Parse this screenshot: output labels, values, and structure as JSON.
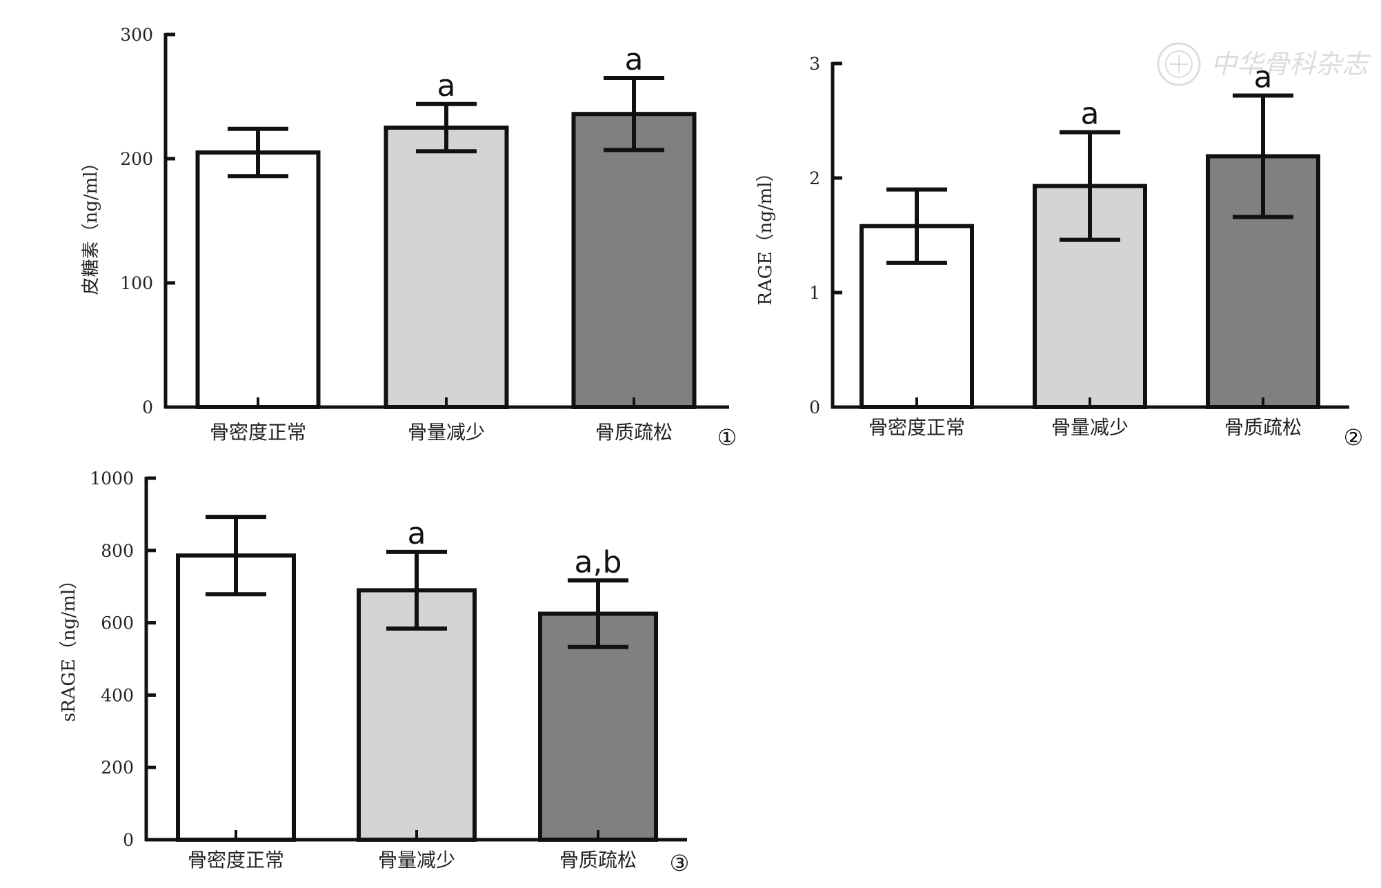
{
  "watermark": {
    "text": "中华骨科杂志",
    "icon": "society-seal-icon",
    "color": "#d8d8d8"
  },
  "chart_data": [
    {
      "type": "bar",
      "panel_label": "①",
      "categories": [
        "骨密度正常",
        "骨量减少",
        "骨质疏松"
      ],
      "values": [
        205,
        225,
        236
      ],
      "errors": [
        19,
        19,
        29
      ],
      "significance": [
        "",
        "a",
        "a"
      ],
      "ylabel": "皮糖素（ng/ml）",
      "ylim": [
        0,
        300
      ],
      "yticks": [
        0,
        100,
        200,
        300
      ],
      "bar_colors": [
        "#ffffff",
        "#d4d4d4",
        "#808080"
      ],
      "grid": false
    },
    {
      "type": "bar",
      "panel_label": "②",
      "categories": [
        "骨密度正常",
        "骨量减少",
        "骨质疏松"
      ],
      "values": [
        1.58,
        1.93,
        2.19
      ],
      "errors": [
        0.32,
        0.47,
        0.53
      ],
      "significance": [
        "",
        "a",
        "a"
      ],
      "ylabel": "RAGE（ng/ml）",
      "ylim": [
        0,
        3
      ],
      "yticks": [
        0,
        1,
        2,
        3
      ],
      "bar_colors": [
        "#ffffff",
        "#d4d4d4",
        "#808080"
      ],
      "grid": false
    },
    {
      "type": "bar",
      "panel_label": "③",
      "categories": [
        "骨密度正常",
        "骨量减少",
        "骨质疏松"
      ],
      "values": [
        786,
        690,
        625
      ],
      "errors": [
        107,
        106,
        92
      ],
      "significance": [
        "",
        "a",
        "a,b"
      ],
      "ylabel": "sRAGE（ng/ml）",
      "ylim": [
        0,
        1000
      ],
      "yticks": [
        0,
        200,
        400,
        600,
        800,
        1000
      ],
      "bar_colors": [
        "#ffffff",
        "#d4d4d4",
        "#808080"
      ],
      "grid": false
    }
  ]
}
